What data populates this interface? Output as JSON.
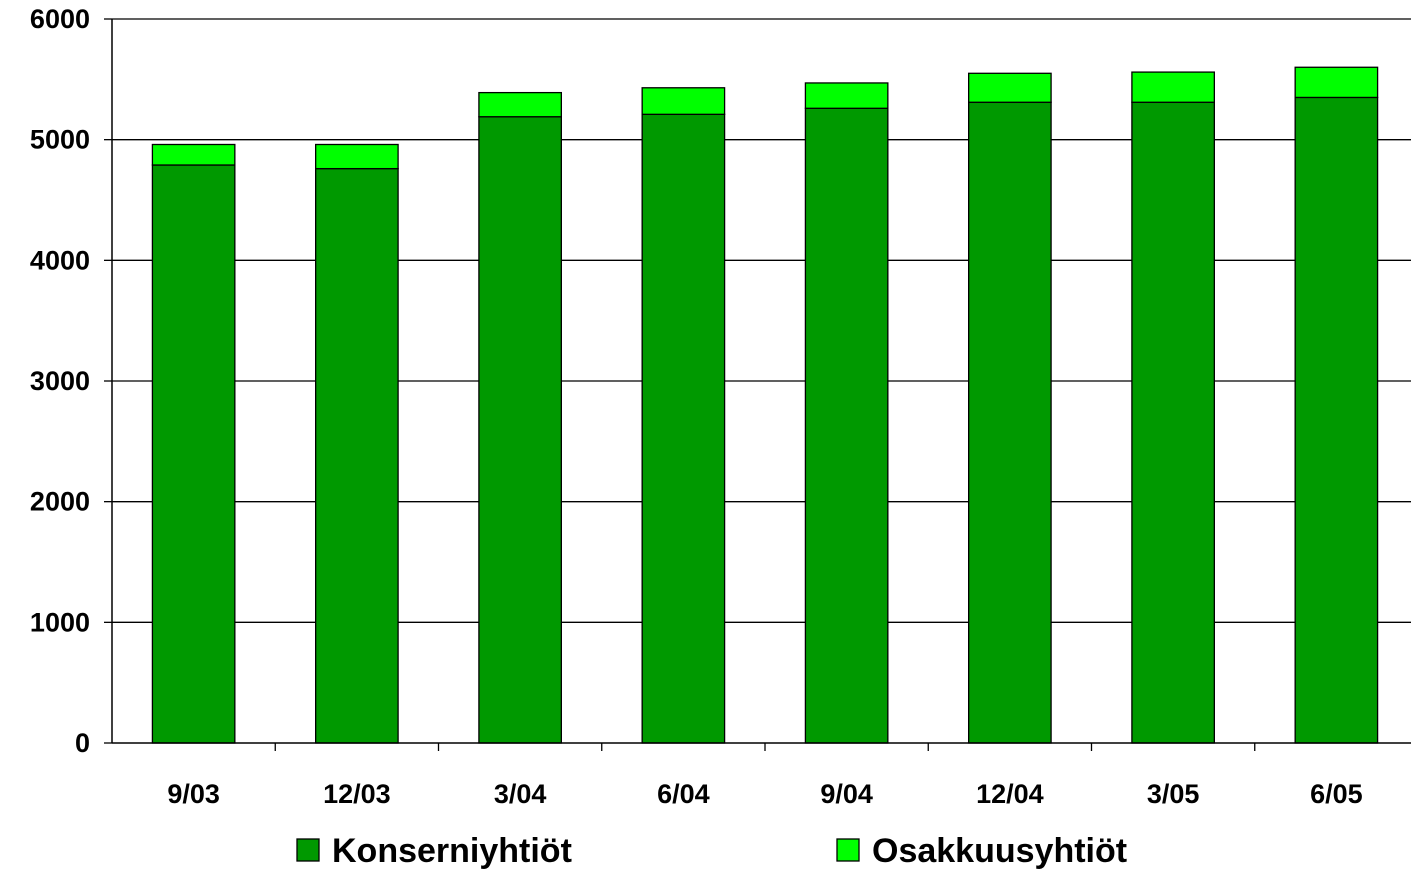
{
  "chart_data": {
    "type": "bar",
    "stacked": true,
    "categories": [
      "9/03",
      "12/03",
      "3/04",
      "6/04",
      "9/04",
      "12/04",
      "3/05",
      "6/05"
    ],
    "series": [
      {
        "name": "Konserniyhtiöt",
        "color": "#009900",
        "values": [
          4790,
          4760,
          5190,
          5210,
          5260,
          5310,
          5310,
          5350
        ]
      },
      {
        "name": "Osakkuusyhtiöt",
        "color": "#00ff00",
        "values": [
          170,
          200,
          200,
          220,
          210,
          240,
          250,
          250
        ]
      }
    ],
    "ylim": [
      0,
      6000
    ],
    "yticks": [
      0,
      1000,
      2000,
      3000,
      4000,
      5000,
      6000
    ],
    "title": "",
    "xlabel": "",
    "ylabel": "",
    "grid": true,
    "legend_position": "bottom"
  }
}
